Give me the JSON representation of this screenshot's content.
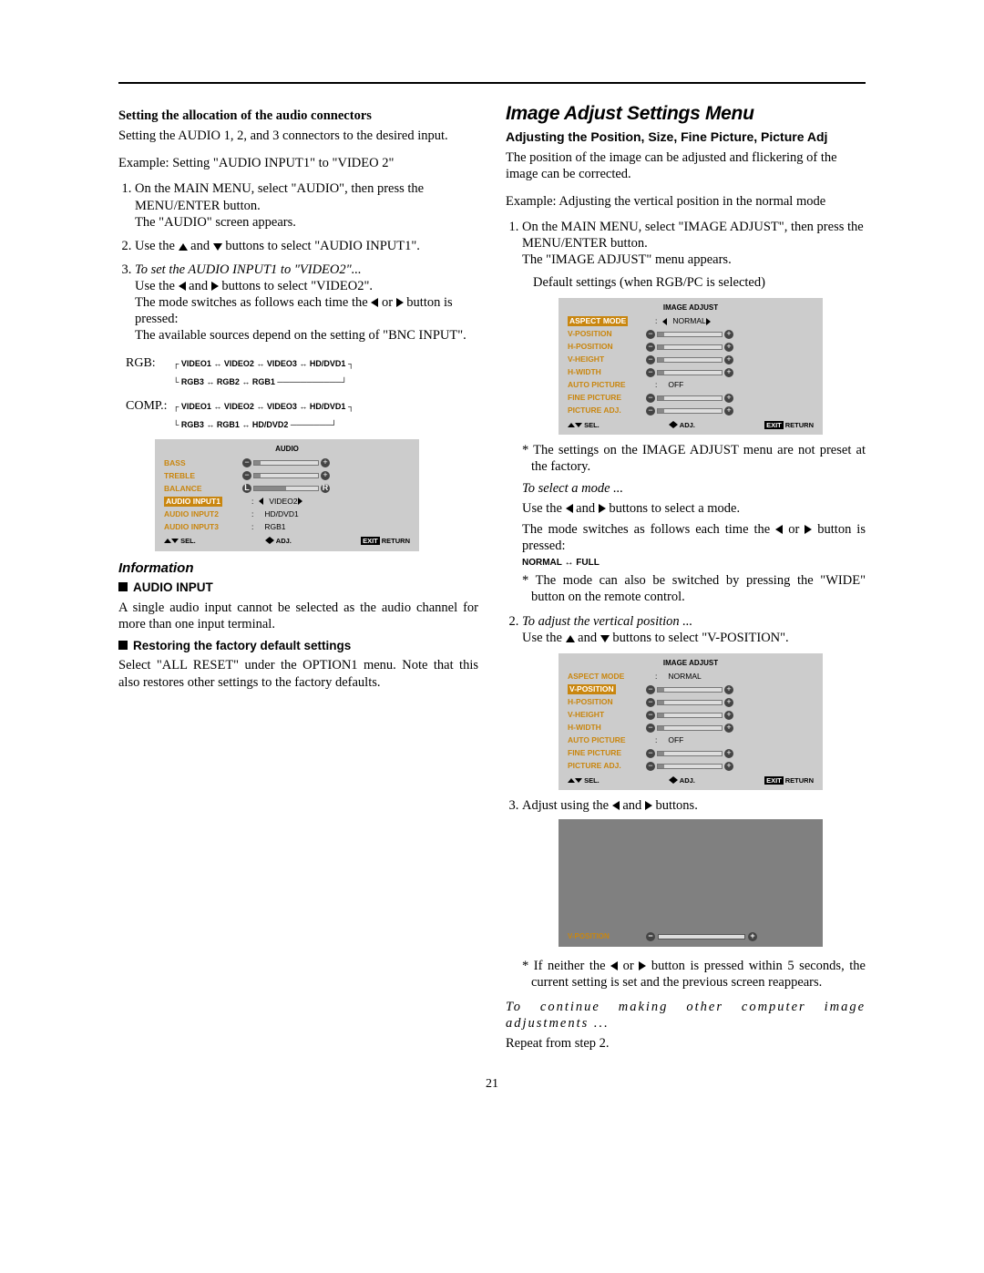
{
  "page_number": "21",
  "left": {
    "h1": "Setting the allocation of the audio connectors",
    "p1": "Setting the AUDIO 1, 2, and 3 connectors to the desired input.",
    "p2": "Example: Setting \"AUDIO INPUT1\" to \"VIDEO 2\"",
    "li1a": "On the MAIN MENU, select \"AUDIO\", then press the MENU/ENTER button.",
    "li1b": "The \"AUDIO\" screen appears.",
    "li2": "Use the ",
    "li2b": " and ",
    "li2c": " buttons to select \"AUDIO INPUT1\".",
    "li3i": "To set the AUDIO INPUT1 to \"VIDEO2\"...",
    "li3a": "Use the ",
    "li3b": " and ",
    "li3c": " buttons to select \"VIDEO2\".",
    "li3d": "The mode switches as follows each time the ",
    "li3e": " or ",
    "li3f": " button is pressed:",
    "li3g": "The available sources depend on the setting of \"BNC INPUT\".",
    "rgb_lbl": "RGB:",
    "comp_lbl": "COMP.:",
    "flow_rgb1": "VIDEO1  ↔  VIDEO2  ↔  VIDEO3  ↔  HD/DVD1",
    "flow_rgb2": "RGB3  ↔  RGB2  ↔  RGB1",
    "flow_comp1": "VIDEO1  ↔  VIDEO2  ↔  VIDEO3  ↔  HD/DVD1",
    "flow_comp2": "RGB3  ↔  RGB1  ↔  HD/DVD2",
    "info_head": "Information",
    "audio_input_h": "AUDIO INPUT",
    "audio_input_p": "A single audio input cannot be selected as the audio channel for more than one input terminal.",
    "restore_h": "Restoring the factory default settings",
    "restore_p": "Select \"ALL RESET\" under the OPTION1 menu. Note that this also restores other settings to the factory defaults."
  },
  "right": {
    "h1": "Image Adjust Settings Menu",
    "h2": "Adjusting the Position, Size, Fine Picture, Picture Adj",
    "p1": "The position of the image can be adjusted and flickering of the image can be corrected.",
    "p2": "Example: Adjusting the vertical position in the normal mode",
    "li1a": "On the MAIN MENU, select \"IMAGE ADJUST\", then press the MENU/ENTER button.",
    "li1b": "The \"IMAGE ADJUST\" menu appears.",
    "default": "Default settings (when RGB/PC is selected)",
    "note1": "* The settings on the IMAGE ADJUST menu are not preset at the factory.",
    "sel_mode_h": "To select a mode ...",
    "sel_mode_a": "Use the ",
    "sel_mode_b": " and ",
    "sel_mode_c": " buttons to select a mode.",
    "sel_mode_d": "The mode switches as follows each time the ",
    "sel_mode_e": " or ",
    "sel_mode_f": " button is pressed:",
    "mode_flow": "NORMAL  ↔  FULL",
    "note2": "* The mode can also be switched by pressing the \"WIDE\" button on the remote control.",
    "li2i": "To adjust the vertical position ...",
    "li2a": "Use the ",
    "li2b": " and ",
    "li2c": " buttons to select \"V-POSITION\".",
    "li3": "Adjust using the ",
    "li3b": " and ",
    "li3c": " buttons.",
    "note3": "* If neither the ",
    "note3b": " or ",
    "note3c": " button is pressed within 5 seconds, the current setting is set and the previous screen reappears.",
    "cont_h": "To continue making other computer image adjustments ...",
    "cont_p": "Repeat from step 2."
  },
  "osd_audio": {
    "title": "AUDIO",
    "rows": [
      {
        "label": "BASS",
        "type": "slider"
      },
      {
        "label": "TREBLE",
        "type": "slider"
      },
      {
        "label": "BALANCE",
        "type": "slider_lr"
      },
      {
        "label": "AUDIO INPUT1",
        "type": "sel",
        "value": "VIDEO2",
        "hilite": true
      },
      {
        "label": "AUDIO INPUT2",
        "type": "text",
        "value": "HD/DVD1"
      },
      {
        "label": "AUDIO INPUT3",
        "type": "text",
        "value": "RGB1"
      }
    ],
    "footer": {
      "sel": "SEL.",
      "adj": "ADJ.",
      "exit": "EXIT",
      "ret": "RETURN"
    }
  },
  "osd_image1": {
    "title": "IMAGE ADJUST",
    "rows": [
      {
        "label": "ASPECT MODE",
        "type": "sel",
        "value": "NORMAL",
        "hilite": true
      },
      {
        "label": "V-POSITION",
        "type": "slider"
      },
      {
        "label": "H-POSITION",
        "type": "slider"
      },
      {
        "label": "V-HEIGHT",
        "type": "slider"
      },
      {
        "label": "H-WIDTH",
        "type": "slider"
      },
      {
        "label": "AUTO PICTURE",
        "type": "text",
        "value": "OFF"
      },
      {
        "label": "FINE PICTURE",
        "type": "slider"
      },
      {
        "label": "PICTURE ADJ.",
        "type": "slider"
      }
    ]
  },
  "osd_image2": {
    "title": "IMAGE ADJUST",
    "rows": [
      {
        "label": "ASPECT MODE",
        "type": "text",
        "value": "NORMAL"
      },
      {
        "label": "V-POSITION",
        "type": "slider",
        "hilite": true
      },
      {
        "label": "H-POSITION",
        "type": "slider"
      },
      {
        "label": "V-HEIGHT",
        "type": "slider"
      },
      {
        "label": "H-WIDTH",
        "type": "slider"
      },
      {
        "label": "AUTO PICTURE",
        "type": "text",
        "value": "OFF"
      },
      {
        "label": "FINE PICTURE",
        "type": "slider"
      },
      {
        "label": "PICTURE ADJ.",
        "type": "slider"
      }
    ]
  },
  "vpos_label": "V-POSITION"
}
